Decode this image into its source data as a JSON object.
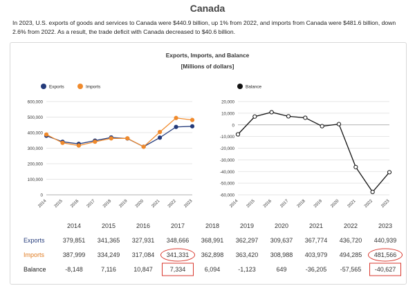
{
  "page": {
    "title": "Canada",
    "intro": "In 2023, U.S. exports of goods and services to Canada were $440.9 billion, up 1% from 2022, and imports from Canada were $481.6 billion, down 2.6% from 2022. As a result, the trade deficit with Canada decreased to $40.6 billion."
  },
  "colors": {
    "exports": "#233a7a",
    "imports": "#f08a2c",
    "balance": "#111111",
    "highlight": "#d9352b",
    "grid": "#dddddd"
  },
  "chart_data": [
    {
      "type": "line",
      "title": "Exports, Imports, and Balance",
      "subtitle": "[Millions of dollars]",
      "x": [
        "2014",
        "2015",
        "2016",
        "2017",
        "2018",
        "2019",
        "2020",
        "2021",
        "2022",
        "2023"
      ],
      "series": [
        {
          "name": "Exports",
          "values": [
            379851,
            341365,
            327931,
            348666,
            368991,
            362297,
            309637,
            367774,
            436720,
            440939
          ]
        },
        {
          "name": "Imports",
          "values": [
            387999,
            334249,
            317084,
            341331,
            362898,
            363420,
            308988,
            403979,
            494285,
            481566
          ]
        }
      ],
      "yticks": [
        "0",
        "100,000",
        "200,000",
        "300,000",
        "400,000",
        "500,000",
        "600,000"
      ],
      "ylim": [
        0,
        600000
      ],
      "legend": "top-left",
      "grid": true
    },
    {
      "type": "line",
      "x": [
        "2014",
        "2015",
        "2016",
        "2017",
        "2018",
        "2019",
        "2020",
        "2021",
        "2022",
        "2023"
      ],
      "series": [
        {
          "name": "Balance",
          "values": [
            -8148,
            7116,
            10847,
            7334,
            6094,
            -1123,
            649,
            -36205,
            -57565,
            -40627
          ]
        }
      ],
      "yticks": [
        "20,000",
        "10,000",
        "0",
        "-10,000",
        "-20,000",
        "-30,000",
        "-40,000",
        "-50,000",
        "-60,000"
      ],
      "ylim": [
        -60000,
        20000
      ],
      "legend": "top-left",
      "grid": true
    }
  ],
  "table": {
    "years": [
      "2014",
      "2015",
      "2016",
      "2017",
      "2018",
      "2019",
      "2020",
      "2021",
      "2022",
      "2023"
    ],
    "rows": [
      {
        "key": "exports",
        "label": "Exports",
        "cells": [
          "379,851",
          "341,365",
          "327,931",
          "348,666",
          "368,991",
          "362,297",
          "309,637",
          "367,774",
          "436,720",
          "440,939"
        ]
      },
      {
        "key": "imports",
        "label": "Imports",
        "cells": [
          "387,999",
          "334,249",
          "317,084",
          "341,331",
          "362,898",
          "363,420",
          "308,988",
          "403,979",
          "494,285",
          "481,566"
        ]
      },
      {
        "key": "balance",
        "label": "Balance",
        "cells": [
          "-8,148",
          "7,116",
          "10,847",
          "7,334",
          "6,094",
          "-1,123",
          "649",
          "-36,205",
          "-57,565",
          "-40,627"
        ]
      }
    ]
  }
}
